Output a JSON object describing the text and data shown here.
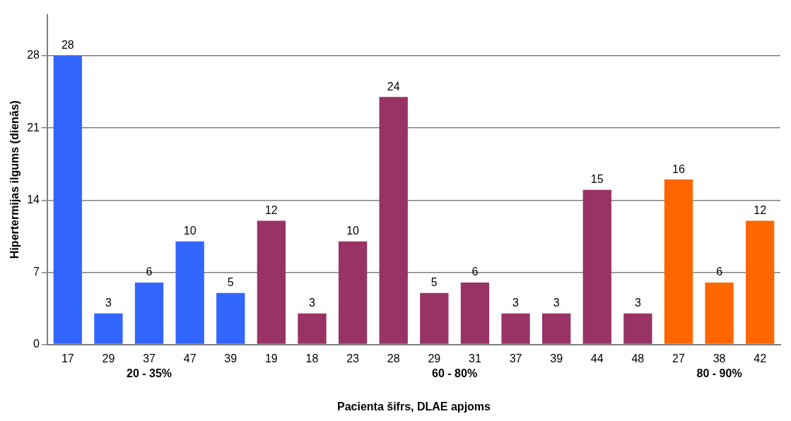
{
  "chart_data": {
    "type": "bar",
    "xlabel": "Pacienta šifrs, DLAE apjoms",
    "ylabel": "Hipertermijas ilgums (dienās)",
    "categories": [
      "17",
      "29",
      "37",
      "47",
      "39",
      "19",
      "18",
      "23",
      "28",
      "29",
      "31",
      "37",
      "39",
      "44",
      "48",
      "27",
      "38",
      "42"
    ],
    "values": [
      28,
      3,
      6,
      10,
      5,
      12,
      3,
      10,
      24,
      5,
      6,
      3,
      3,
      15,
      3,
      16,
      6,
      12
    ],
    "colors": [
      "#3366ff",
      "#3366ff",
      "#3366ff",
      "#3366ff",
      "#3366ff",
      "#993366",
      "#993366",
      "#993366",
      "#993366",
      "#993366",
      "#993366",
      "#993366",
      "#993366",
      "#993366",
      "#993366",
      "#ff6600",
      "#ff6600",
      "#ff6600"
    ],
    "annotations": [
      "20 - 35%",
      "60 - 80%",
      "80 - 90%"
    ],
    "ylim": [
      0,
      32
    ],
    "yticks": [
      0,
      7,
      14,
      21,
      28
    ],
    "grid": "y",
    "data_labels": true,
    "legend": false
  }
}
